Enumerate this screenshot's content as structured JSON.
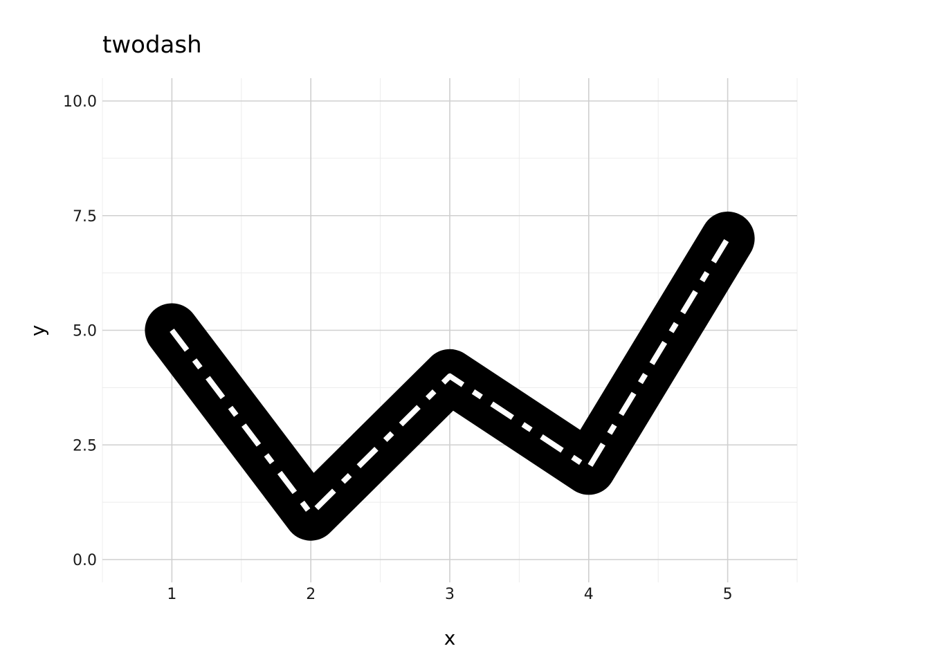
{
  "chart_data": {
    "type": "line",
    "title": "twodash",
    "xlabel": "x",
    "ylabel": "y",
    "x": [
      1,
      2,
      3,
      4,
      5
    ],
    "series": [
      {
        "values": [
          5,
          1,
          4,
          2,
          7
        ]
      }
    ],
    "xlim": [
      0.5,
      5.5
    ],
    "ylim": [
      0,
      10
    ],
    "x_ticks": [
      1,
      2,
      3,
      4,
      5
    ],
    "x_tick_labels": [
      "1",
      "2",
      "3",
      "4",
      "5"
    ],
    "y_ticks": [
      0,
      2.5,
      5,
      7.5,
      10
    ],
    "y_tick_labels": [
      "0.0",
      "2.5",
      "5.0",
      "7.5",
      "10.0"
    ],
    "grid": true,
    "line_style": "twodash",
    "colors": {
      "outer_line": "#000000",
      "inner_dash": "#ffffff",
      "major_grid": "#cfcfcf",
      "minor_grid": "#ececec",
      "background": "#ffffff"
    }
  }
}
